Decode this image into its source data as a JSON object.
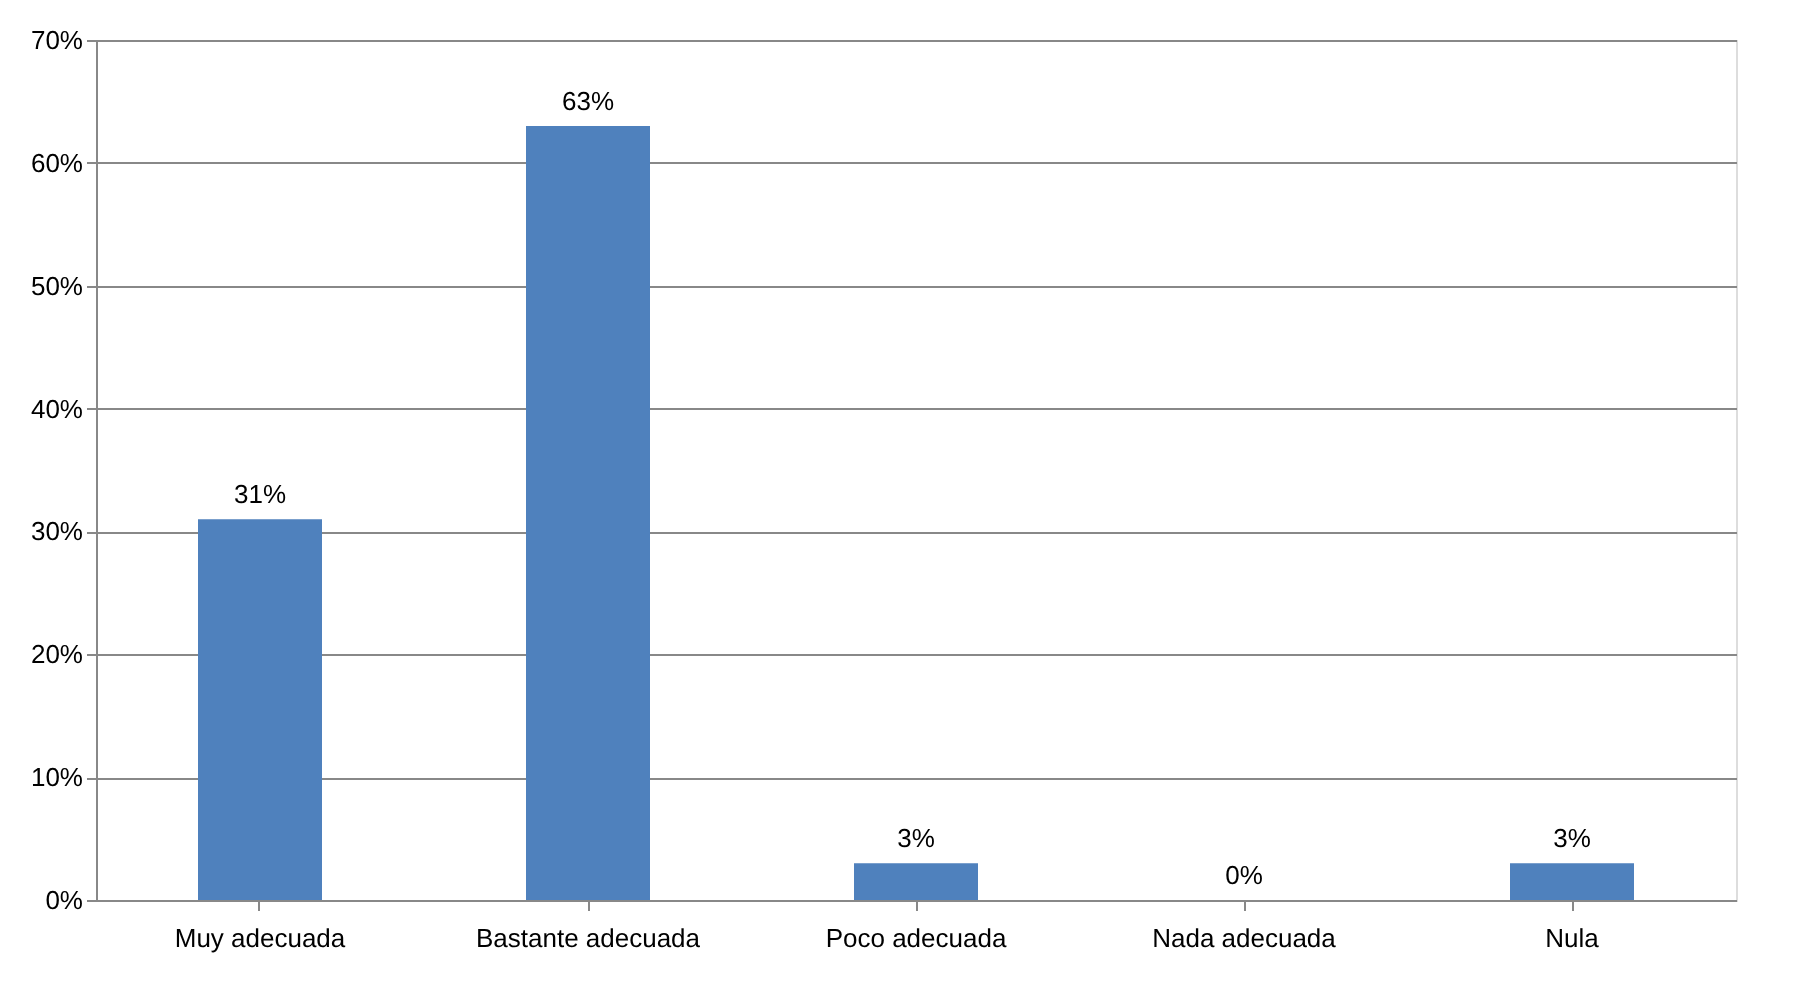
{
  "chart_data": {
    "type": "bar",
    "categories": [
      "Muy adecuada",
      "Bastante adecuada",
      "Poco adecuada",
      "Nada adecuada",
      "Nula"
    ],
    "values": [
      31,
      63,
      3,
      0,
      3
    ],
    "value_labels": [
      "31%",
      "63%",
      "3%",
      "0%",
      "3%"
    ],
    "color": "#4f81bd",
    "ylim": [
      0,
      70
    ],
    "yticks": [
      {
        "value": 0,
        "label": "0%"
      },
      {
        "value": 10,
        "label": "10%"
      },
      {
        "value": 20,
        "label": "20%"
      },
      {
        "value": 30,
        "label": "30%"
      },
      {
        "value": 40,
        "label": "40%"
      },
      {
        "value": 50,
        "label": "50%"
      },
      {
        "value": 60,
        "label": "60%"
      },
      {
        "value": 70,
        "label": "70%"
      }
    ],
    "grid": "y"
  }
}
